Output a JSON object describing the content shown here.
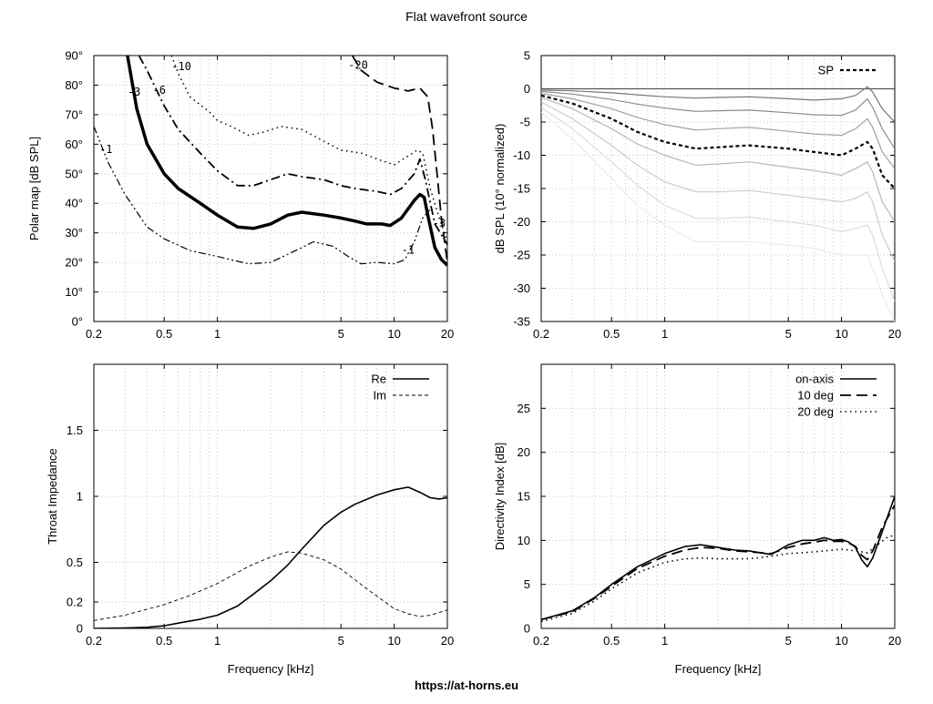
{
  "figure": {
    "title": "Flat wavefront source",
    "footer": "https://at-horns.eu"
  },
  "chart_data": [
    {
      "id": "polar",
      "type": "line",
      "subtype": "contour",
      "xlabel": "",
      "ylabel": "Polar map [dB SPL]",
      "xscale": "log",
      "xlim": [
        0.2,
        20
      ],
      "ylim": [
        0,
        90
      ],
      "xticks": [
        0.2,
        0.5,
        1,
        5,
        10,
        20
      ],
      "xtick_labels": [
        "0.2",
        "0.5",
        "1",
        "5",
        "10",
        "20"
      ],
      "yticks": [
        0,
        10,
        20,
        30,
        40,
        50,
        60,
        70,
        80,
        90
      ],
      "ytick_labels": [
        "0°",
        "10°",
        "20°",
        "30°",
        "40°",
        "50°",
        "60°",
        "70°",
        "80°",
        "90°"
      ],
      "grid": true,
      "series": [
        {
          "level": "-1",
          "style": "dash-dot-dot",
          "width": 1.2,
          "x": [
            0.2,
            0.24,
            0.3,
            0.4,
            0.5,
            0.7,
            1.0,
            1.5,
            2.0,
            3.0,
            3.5,
            4.5,
            5.5,
            6.5,
            8.0,
            10.0,
            11.5,
            13.0,
            14.5,
            16.0
          ],
          "y": [
            66,
            54,
            43,
            32,
            28,
            24,
            22,
            19.5,
            20,
            25,
            27,
            25.5,
            22,
            19.5,
            20,
            19.5,
            21,
            27,
            35,
            38
          ]
        },
        {
          "level": "-3",
          "style": "solid",
          "width": 3.5,
          "x": [
            0.31,
            0.35,
            0.4,
            0.5,
            0.6,
            0.8,
            1.0,
            1.3,
            1.6,
            2.0,
            2.5,
            3.0,
            4.0,
            5.0,
            6.0,
            7.0,
            8.5,
            9.5,
            11.0,
            13.0,
            14.0,
            14.8,
            15.5,
            17.0,
            18.5,
            20.0
          ],
          "y": [
            90,
            72,
            60,
            50,
            45,
            40,
            36,
            32,
            31.5,
            33,
            36,
            37,
            36,
            35,
            34,
            33,
            33,
            32.5,
            35,
            41,
            43,
            42,
            36,
            25,
            21,
            19
          ]
        },
        {
          "level": "-6",
          "style": "dash-dot",
          "width": 1.8,
          "x": [
            0.36,
            0.4,
            0.5,
            0.6,
            0.8,
            1.0,
            1.3,
            1.6,
            2.0,
            2.5,
            3.0,
            4.0,
            5.0,
            6.0,
            8.0,
            9.5,
            11.0,
            13.0,
            14.0,
            15.0,
            17.0,
            20.0
          ],
          "y": [
            90,
            85,
            73,
            65,
            57,
            51,
            46,
            46,
            48,
            50,
            49,
            48,
            46,
            45,
            44,
            43,
            45,
            50,
            55,
            48,
            33,
            26
          ]
        },
        {
          "level": "-10",
          "style": "dotted",
          "width": 1.5,
          "x": [
            0.55,
            0.6,
            0.7,
            0.9,
            1.0,
            1.2,
            1.5,
            1.8,
            2.3,
            3.0,
            4.0,
            5.0,
            6.5,
            8.0,
            10.0,
            12.0,
            13.5,
            14.5,
            16.0,
            18.0,
            20.0
          ],
          "y": [
            90,
            84,
            76,
            71,
            68,
            66,
            63,
            64,
            66,
            65,
            61,
            58,
            57,
            55,
            53,
            56,
            58,
            57,
            45,
            35,
            27
          ]
        },
        {
          "level": "-20",
          "style": "long-dash",
          "width": 1.8,
          "x": [
            5.8,
            6.5,
            8.0,
            10.0,
            12.0,
            14.0,
            15.5,
            16.5,
            17.5,
            18.5,
            20.0
          ],
          "y": [
            90,
            85,
            81,
            79,
            78,
            79,
            76,
            65,
            50,
            35,
            20
          ]
        }
      ],
      "annotations": [
        {
          "text": "-1",
          "x": 0.215,
          "y": 57
        },
        {
          "text": "-3",
          "x": 0.31,
          "y": 76.5
        },
        {
          "text": "-6",
          "x": 0.43,
          "y": 77
        },
        {
          "text": "-10",
          "x": 0.55,
          "y": 85
        },
        {
          "text": "-20",
          "x": 5.5,
          "y": 85.5
        },
        {
          "text": "-1",
          "x": 11.0,
          "y": 23
        },
        {
          "text": "-3",
          "x": 16.5,
          "y": 32
        }
      ]
    },
    {
      "id": "spl",
      "type": "line",
      "xlabel": "",
      "ylabel": "dB SPL (10° normalized)",
      "xscale": "log",
      "xlim": [
        0.2,
        20
      ],
      "ylim": [
        -35,
        5
      ],
      "xticks": [
        0.2,
        0.5,
        1,
        5,
        10,
        20
      ],
      "xtick_labels": [
        "0.2",
        "0.5",
        "1",
        "5",
        "10",
        "20"
      ],
      "yticks": [
        -35,
        -30,
        -25,
        -20,
        -15,
        -10,
        -5,
        0,
        5
      ],
      "ytick_labels": [
        "-35",
        "-30",
        "-25",
        "-20",
        "-15",
        "-10",
        "-5",
        "0",
        "5"
      ],
      "grid": true,
      "legend": {
        "entries": [
          "SP"
        ],
        "position": "top-right"
      },
      "x": [
        0.2,
        0.3,
        0.5,
        0.7,
        1.0,
        1.5,
        2.0,
        3.0,
        5.0,
        7.0,
        10.0,
        12.0,
        14.0,
        15.0,
        17.0,
        20.0
      ],
      "series": [
        {
          "name": "SP",
          "style": "dashed",
          "width": 2.2,
          "color": "#000000",
          "y": [
            -1,
            -2.2,
            -4.5,
            -6.5,
            -8,
            -9,
            -8.8,
            -8.5,
            -9,
            -9.5,
            -10,
            -9,
            -8,
            -9,
            -13,
            -15
          ]
        },
        {
          "y": [
            0,
            0,
            0,
            0,
            0,
            0,
            0,
            0,
            0,
            0,
            0,
            0,
            0,
            0,
            0,
            0
          ],
          "style": "solid",
          "width": 1.2,
          "color": "#555555"
        },
        {
          "y": [
            -0.2,
            -0.3,
            -0.6,
            -0.9,
            -1.2,
            -1.4,
            -1.3,
            -1.2,
            -1.5,
            -1.7,
            -1.5,
            -1,
            0.3,
            -0.5,
            -3,
            -5
          ],
          "style": "solid",
          "width": 1.2,
          "color": "#777777"
        },
        {
          "y": [
            -0.4,
            -0.8,
            -1.6,
            -2.3,
            -2.9,
            -3.4,
            -3.3,
            -3.2,
            -3.6,
            -3.9,
            -4,
            -3.2,
            -1.5,
            -2.8,
            -6,
            -9
          ],
          "style": "solid",
          "width": 1.2,
          "color": "#8c8c8c"
        },
        {
          "y": [
            -0.7,
            -1.5,
            -3,
            -4.3,
            -5.4,
            -6.2,
            -6,
            -5.8,
            -6.4,
            -6.8,
            -7,
            -6,
            -4.5,
            -5.8,
            -9.5,
            -12
          ],
          "style": "solid",
          "width": 1.2,
          "color": "#a0a0a0"
        },
        {
          "y": [
            -1.3,
            -3,
            -6,
            -8.3,
            -10,
            -11.5,
            -11.3,
            -11,
            -11.8,
            -12.3,
            -13,
            -12,
            -11,
            -12.5,
            -17,
            -20
          ],
          "style": "solid",
          "width": 1.2,
          "color": "#b8b8b8"
        },
        {
          "y": [
            -2,
            -4.5,
            -8.5,
            -11.5,
            -14,
            -15.5,
            -15.5,
            -15.3,
            -16,
            -16.5,
            -17,
            -16.5,
            -15.5,
            -17,
            -22,
            -26
          ],
          "style": "solid",
          "width": 1.2,
          "color": "#cccccc"
        },
        {
          "y": [
            -2.8,
            -6,
            -11,
            -14.5,
            -17.5,
            -19.5,
            -19.5,
            -19.3,
            -20,
            -20.5,
            -21.5,
            -21,
            -20.5,
            -22,
            -27,
            -32
          ],
          "style": "solid",
          "width": 1.2,
          "color": "#dddddd"
        },
        {
          "y": [
            -3.5,
            -7.5,
            -13.5,
            -17.5,
            -20.5,
            -23,
            -23,
            -23,
            -23.5,
            -24,
            -25,
            -25,
            -25,
            -27,
            -31,
            -35
          ],
          "style": "solid",
          "width": 1.2,
          "color": "#ebebeb"
        }
      ]
    },
    {
      "id": "impedance",
      "type": "line",
      "xlabel": "Frequency [kHz]",
      "ylabel": "Throat Impedance",
      "xscale": "log",
      "xlim": [
        0.2,
        20
      ],
      "ylim": [
        0,
        2
      ],
      "xticks": [
        0.2,
        0.5,
        1,
        5,
        10,
        20
      ],
      "xtick_labels": [
        "0.2",
        "0.5",
        "1",
        "5",
        "10",
        "20"
      ],
      "yticks": [
        0,
        0.2,
        0.5,
        1,
        1.5
      ],
      "ytick_labels": [
        "0",
        "0.2",
        "0.5",
        "1",
        "1.5"
      ],
      "grid": true,
      "legend": {
        "entries": [
          "Re",
          "Im"
        ],
        "position": "top-right"
      },
      "series": [
        {
          "name": "Re",
          "style": "solid",
          "width": 1.6,
          "x": [
            0.2,
            0.3,
            0.4,
            0.5,
            0.6,
            0.8,
            1.0,
            1.3,
            1.6,
            2.0,
            2.5,
            3.0,
            4.0,
            5.0,
            6.0,
            8.0,
            10.0,
            12.0,
            14.0,
            16.0,
            18.0,
            20.0
          ],
          "y": [
            0,
            0.003,
            0.008,
            0.02,
            0.04,
            0.07,
            0.1,
            0.17,
            0.26,
            0.36,
            0.48,
            0.6,
            0.78,
            0.88,
            0.94,
            1.01,
            1.05,
            1.07,
            1.03,
            0.99,
            0.98,
            0.99
          ]
        },
        {
          "name": "Im",
          "style": "dashed",
          "width": 0.9,
          "x": [
            0.2,
            0.3,
            0.5,
            0.7,
            1.0,
            1.5,
            2.0,
            2.5,
            3.0,
            4.0,
            5.0,
            7.0,
            10.0,
            12.0,
            14.0,
            16.0,
            18.0,
            20.0
          ],
          "y": [
            0.06,
            0.1,
            0.18,
            0.25,
            0.34,
            0.47,
            0.54,
            0.58,
            0.57,
            0.52,
            0.45,
            0.3,
            0.15,
            0.11,
            0.09,
            0.1,
            0.12,
            0.14
          ]
        }
      ]
    },
    {
      "id": "directivity",
      "type": "line",
      "xlabel": "Frequency [kHz]",
      "ylabel": "Directivity Index [dB]",
      "xscale": "log",
      "xlim": [
        0.2,
        20
      ],
      "ylim": [
        0,
        30
      ],
      "xticks": [
        0.2,
        0.5,
        1,
        5,
        10,
        20
      ],
      "xtick_labels": [
        "0.2",
        "0.5",
        "1",
        "5",
        "10",
        "20"
      ],
      "yticks": [
        0,
        5,
        10,
        15,
        20,
        25
      ],
      "ytick_labels": [
        "0",
        "5",
        "10",
        "15",
        "20",
        "25"
      ],
      "grid": true,
      "legend": {
        "entries": [
          "on-axis",
          "10 deg",
          "20 deg"
        ],
        "position": "top-right"
      },
      "series": [
        {
          "name": "on-axis",
          "style": "solid",
          "width": 1.6,
          "x": [
            0.2,
            0.3,
            0.4,
            0.5,
            0.7,
            1.0,
            1.3,
            1.6,
            2.0,
            2.5,
            3.0,
            4.0,
            5.0,
            6.0,
            7.0,
            8.0,
            9.0,
            10.0,
            11.0,
            12.0,
            13.0,
            14.0,
            15.0,
            17.0,
            20.0
          ],
          "y": [
            1,
            2,
            3.5,
            5,
            7,
            8.5,
            9.3,
            9.5,
            9.2,
            8.9,
            8.8,
            8.4,
            9.5,
            10,
            10,
            10.3,
            10,
            10.1,
            9.8,
            9.2,
            7.8,
            7,
            8,
            11,
            15
          ]
        },
        {
          "name": "10 deg",
          "style": "long-dash",
          "width": 1.8,
          "x": [
            0.2,
            0.3,
            0.4,
            0.5,
            0.7,
            1.0,
            1.3,
            1.6,
            2.0,
            2.5,
            3.0,
            4.0,
            5.0,
            6.0,
            7.0,
            8.0,
            9.0,
            10.0,
            11.0,
            12.0,
            13.0,
            14.0,
            15.0,
            17.0,
            20.0
          ],
          "y": [
            1,
            1.9,
            3.4,
            4.8,
            6.8,
            8.2,
            8.9,
            9.2,
            9.1,
            8.8,
            8.7,
            8.5,
            9.2,
            9.6,
            9.8,
            10,
            9.9,
            9.9,
            9.7,
            9.3,
            8.3,
            7.8,
            8.8,
            11.5,
            14
          ]
        },
        {
          "name": "20 deg",
          "style": "dotted",
          "width": 1.6,
          "x": [
            0.2,
            0.3,
            0.4,
            0.5,
            0.7,
            1.0,
            1.3,
            1.6,
            2.0,
            2.5,
            3.0,
            4.0,
            5.0,
            6.0,
            7.0,
            8.0,
            10.0,
            12.0,
            14.0,
            16.0,
            18.0,
            20.0
          ],
          "y": [
            0.8,
            1.7,
            3.1,
            4.5,
            6.3,
            7.5,
            7.9,
            8,
            7.9,
            7.9,
            7.9,
            8.2,
            8.5,
            8.6,
            8.7,
            8.8,
            9,
            8.8,
            8.6,
            9.5,
            10.3,
            10.6
          ]
        }
      ]
    }
  ]
}
